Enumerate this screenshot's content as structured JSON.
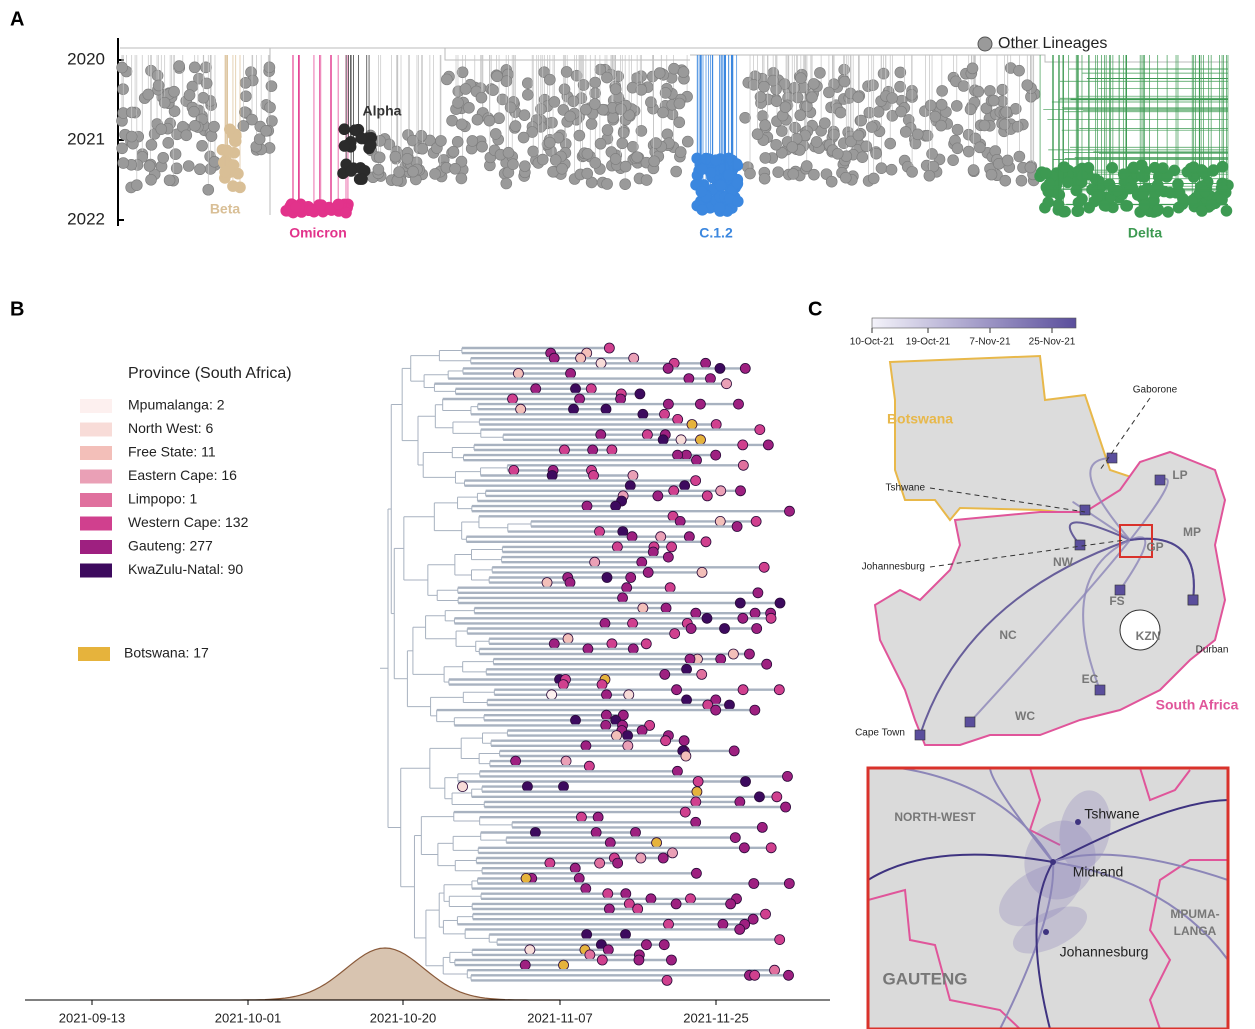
{
  "panel_a": {
    "label": "A",
    "legend": "Other Lineages",
    "legend_color": "#9a9a9a",
    "time_labels": [
      "2020",
      "2021",
      "2022"
    ],
    "clades": [
      {
        "name": "Beta",
        "color": "#d9bf96"
      },
      {
        "name": "Omicron",
        "color": "#e2338b"
      },
      {
        "name": "Alpha",
        "color": "#2b2b2b"
      },
      {
        "name": "C.1.2",
        "color": "#3b87df"
      },
      {
        "name": "Delta",
        "color": "#3d9a52"
      }
    ]
  },
  "panel_b": {
    "label": "B",
    "legend_title": "Province (South Africa)",
    "provinces": [
      {
        "label": "Mpumalanga: 2",
        "color": "#fdf0ef"
      },
      {
        "label": "North West: 6",
        "color": "#f8dcd8"
      },
      {
        "label": "Free State: 11",
        "color": "#f3bfb9"
      },
      {
        "label": "Eastern Cape: 16",
        "color": "#eaa0b6"
      },
      {
        "label": "Limpopo: 1",
        "color": "#e0709e"
      },
      {
        "label": "Western Cape: 132",
        "color": "#d0408e"
      },
      {
        "label": "Gauteng: 277",
        "color": "#9e2080"
      },
      {
        "label": "KwaZulu-Natal: 90",
        "color": "#3d0a5e"
      }
    ],
    "botswana": {
      "label": "Botswana: 17",
      "color": "#e6b33c"
    },
    "date_labels": [
      "2021-09-13",
      "2021-10-01",
      "2021-10-20",
      "2021-11-07",
      "2021-11-25"
    ],
    "density_color": "#d8c4b0"
  },
  "panel_c": {
    "label": "C",
    "colorbar_labels": [
      "10-Oct-21",
      "19-Oct-21",
      "7-Nov-21",
      "25-Nov-21"
    ],
    "countries": [
      {
        "label": "Botswana",
        "color": "#e8b84a"
      },
      {
        "label": "South Africa",
        "color": "#e0559a"
      }
    ],
    "cities": [
      "Gaborone",
      "Tshwane",
      "Johannesburg",
      "Cape Town",
      "Durban"
    ],
    "provinces": [
      "LP",
      "MP",
      "GP",
      "NW",
      "FS",
      "NC",
      "KZN",
      "EC",
      "WC"
    ],
    "inset": {
      "regions": [
        "NORTH-WEST",
        "GAUTENG"
      ],
      "region_lines": [
        "MPUMA-",
        "LANGA"
      ],
      "cities": [
        "Tshwane",
        "Midrand",
        "Johannesburg"
      ]
    }
  }
}
